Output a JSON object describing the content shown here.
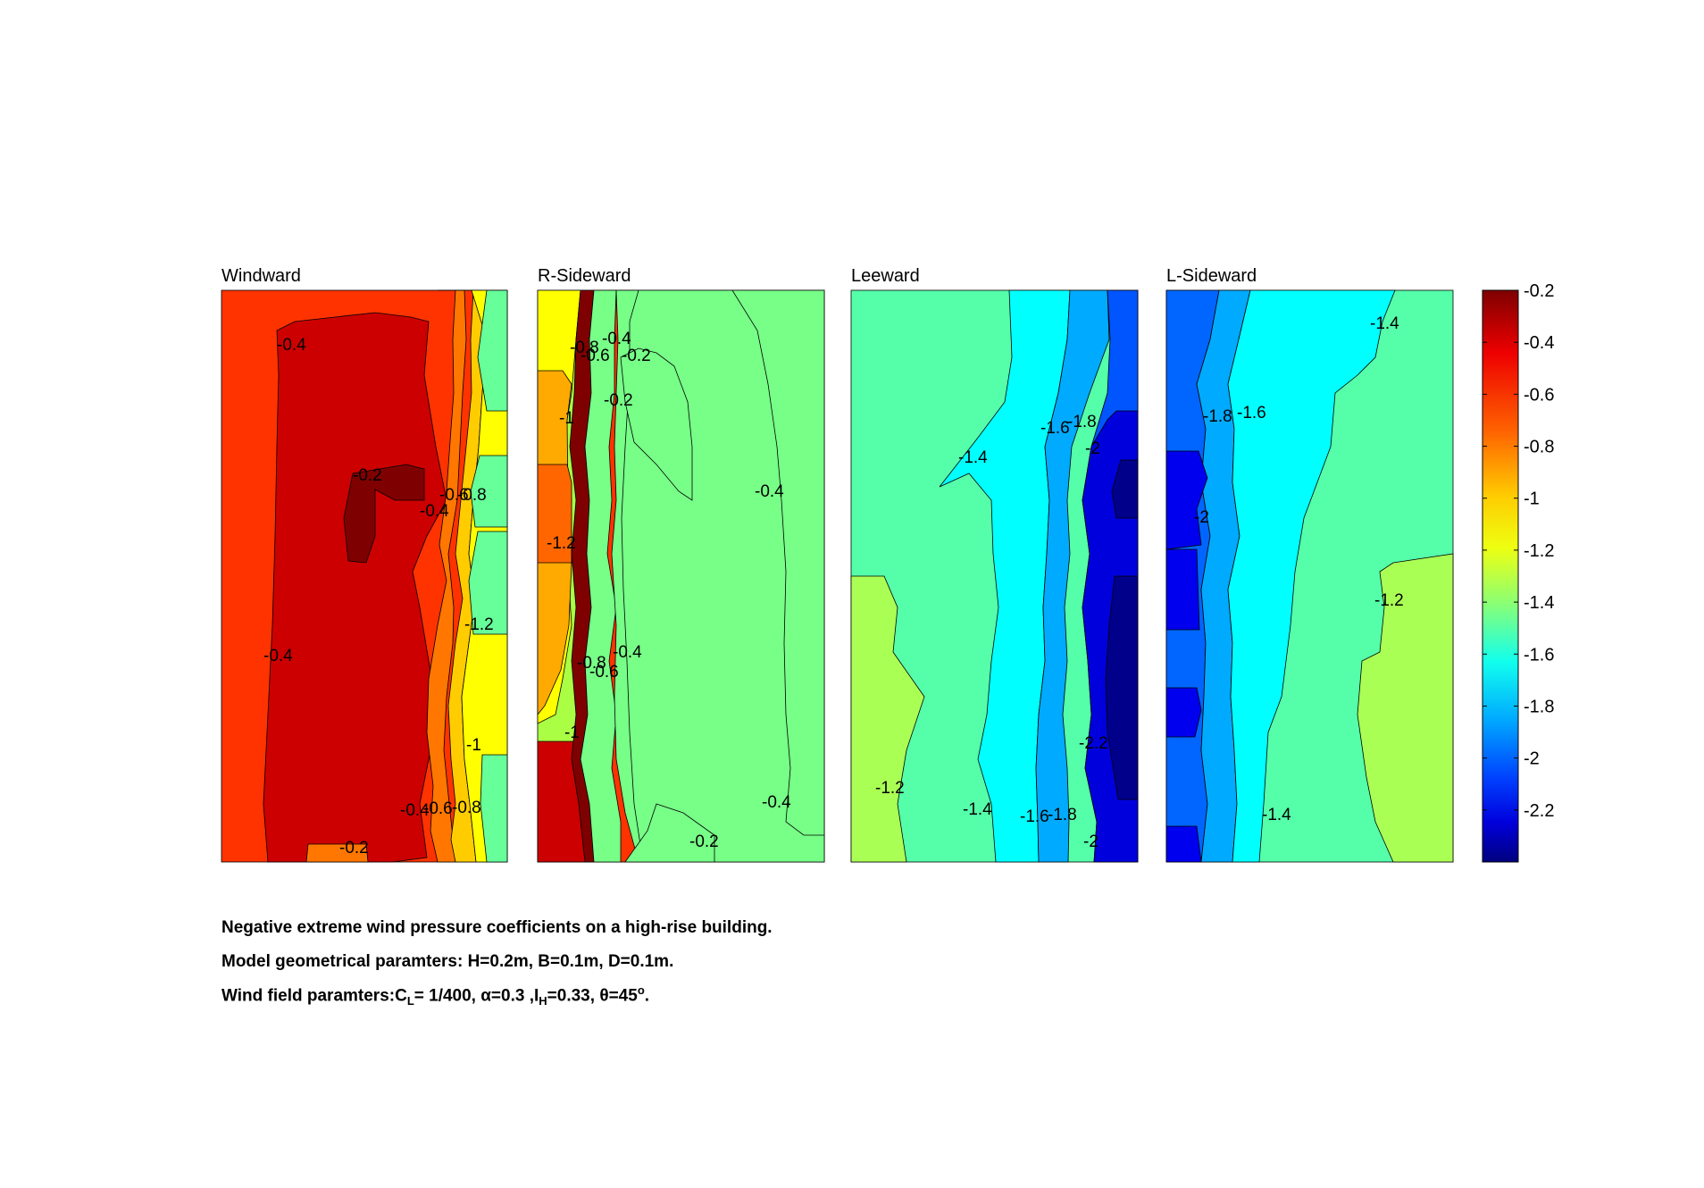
{
  "chart_data": {
    "type": "contour",
    "colormap": "jet",
    "clim": [
      -2.4,
      -0.2
    ],
    "colorbar": {
      "ticks": [
        "-0.2",
        "-0.4",
        "-0.6",
        "-0.8",
        "-1",
        "-1.2",
        "-1.4",
        "-1.6",
        "-1.8",
        "-2",
        "-2.2"
      ]
    },
    "panels": [
      {
        "title": "Windward",
        "bands": [
          {
            "level": -0.4,
            "color": "#ff3300"
          },
          {
            "level": -0.2,
            "color": "#cc0000"
          },
          {
            "level": -0.1,
            "color": "#7f0000"
          },
          {
            "level": -0.6,
            "color": "#ff7700"
          },
          {
            "level": -0.8,
            "color": "#ffcc00"
          },
          {
            "level": -1.0,
            "color": "#ffff00"
          },
          {
            "level": -1.2,
            "color": "#aaff44"
          },
          {
            "level": -1.4,
            "color": "#66ff99"
          }
        ],
        "contour_labels": [
          "-0.4",
          "-0.2",
          "-0.4",
          "-0.6",
          "-0.8",
          "-1.2",
          "-0.4",
          "-1",
          "-0.4",
          "-0.6",
          "-0.8",
          "-0.2"
        ]
      },
      {
        "title": "R-Sideward",
        "bands": [
          {
            "level": -1.2,
            "color": "#aaff44"
          },
          {
            "level": -0.4,
            "color": "#ff3300"
          },
          {
            "level": -1.0,
            "color": "#ffff00"
          },
          {
            "level": -0.8,
            "color": "#ffaa00"
          },
          {
            "level": -0.6,
            "color": "#ff6600"
          },
          {
            "level": -0.2,
            "color": "#cc0000"
          },
          {
            "level": -0.1,
            "color": "#7f0000"
          },
          {
            "level": -1.4,
            "color": "#77ff88"
          }
        ],
        "contour_labels": [
          "-0.8",
          "-0.4",
          "-0.6",
          "-0.2",
          "-0.2",
          "-1",
          "-1.2",
          "-0.4",
          "-0.8",
          "-0.4",
          "-0.6",
          "-1",
          "-0.4",
          "-0.2"
        ]
      },
      {
        "title": "Leeward",
        "bands": [
          {
            "level": -1.4,
            "color": "#55ffaa"
          },
          {
            "level": -1.2,
            "color": "#aaff55"
          },
          {
            "level": -1.6,
            "color": "#00ffff"
          },
          {
            "level": -1.8,
            "color": "#00aaff"
          },
          {
            "level": -2.0,
            "color": "#0055ff"
          },
          {
            "level": -2.2,
            "color": "#0000dd"
          },
          {
            "level": -2.4,
            "color": "#00008b"
          }
        ],
        "contour_labels": [
          "-1.4",
          "-1.6",
          "-1.8",
          "-2",
          "-1.2",
          "-1.4",
          "-1.6",
          "-1.8",
          "-2.2",
          "-2"
        ]
      },
      {
        "title": "L-Sideward",
        "bands": [
          {
            "level": -1.4,
            "color": "#55ffaa"
          },
          {
            "level": -1.8,
            "color": "#0066ff"
          },
          {
            "level": -1.6,
            "color": "#00aaff"
          },
          {
            "level": -1.5,
            "color": "#00ffff"
          },
          {
            "level": -1.2,
            "color": "#aaff55"
          },
          {
            "level": -2.0,
            "color": "#0000ee"
          }
        ],
        "contour_labels": [
          "-1.4",
          "-1.8",
          "-1.6",
          "-2",
          "-1.2",
          "-1.4"
        ]
      }
    ]
  },
  "caption": {
    "line1": "Negative extreme wind pressure coefficients on a high-rise building.",
    "line2": "Model geometrical paramters: H=0.2m, B=0.1m, D=0.1m.",
    "line3_prefix": "Wind field paramters:C",
    "line3_sub_L": "L",
    "line3_cl": "= 1/400, ",
    "line3_alpha": "α=0.3 ,I",
    "line3_sub_H": "H",
    "line3_ih": "=0.33, ",
    "line3_theta": "θ=45",
    "line3_sup": "o",
    "line3_end": "."
  }
}
